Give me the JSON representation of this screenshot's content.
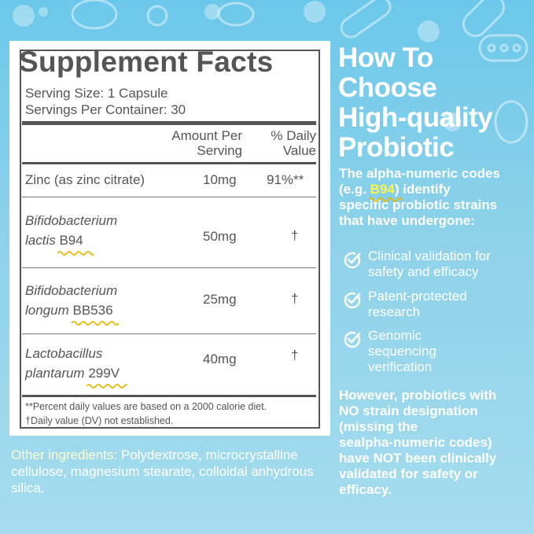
{
  "colors": {
    "background": "#8ed2ea",
    "panel": "#ffffff",
    "panel_text": "#555555",
    "highlight": "#fff44a",
    "squiggle": "#e8b800"
  },
  "facts": {
    "title": "Supplement Facts",
    "serving_size": "Serving Size: 1 Capsule",
    "servings_per_container": "Servings Per Container: 30",
    "col_amount_1": "Amount Per",
    "col_amount_2": "Serving",
    "col_dv_1": "% Daily",
    "col_dv_2": "Value",
    "rows": [
      {
        "name": "Zinc (as zinc citrate)",
        "amount": "10mg",
        "dv": "91%**"
      },
      {
        "name_1": "Bifidobacterium",
        "name_2": "lactis",
        "code": "B94",
        "amount": "50mg",
        "dv": "†"
      },
      {
        "name_1": "Bifidobacterium",
        "name_2": "longum",
        "code": "BB536",
        "amount": "25mg",
        "dv": "†"
      },
      {
        "name_1": "Lactobacillus",
        "name_2": "plantarum",
        "code": "299V",
        "amount": "40mg",
        "dv": "†"
      }
    ],
    "footnote_1": "**Percent daily values are based on a 2000 calorie diet.",
    "footnote_2": "†Daily value (DV) not established."
  },
  "other": {
    "label": "Other ingredients:",
    "text": " Polydextrose, microcrystalline cellulose, magnesium stearate, colloidal anhydrous silica."
  },
  "right": {
    "headline_1": "How To",
    "headline_2": "Choose",
    "headline_3": "High-quality",
    "headline_4": "Probiotic",
    "intro_1": "The alpha-numeric codes",
    "intro_2a": "(e.g. ",
    "intro_code": "B94",
    "intro_2b": ") identify",
    "intro_3": "specific probiotic strains",
    "intro_4": "that have undergone:",
    "checks": [
      {
        "line_1": "Clinical validation for",
        "line_2": "safety and efficacy",
        "line_3": ""
      },
      {
        "line_1": "Patent-protected",
        "line_2": "research",
        "line_3": ""
      },
      {
        "line_1": "Genomic",
        "line_2": "sequencing",
        "line_3": "verification"
      }
    ],
    "warning": [
      "However, probiotics with",
      "NO strain designation",
      "(missing the",
      "sealpha-numeric codes)",
      "have NOT been clinically",
      "validated for safety or",
      "efficacy."
    ]
  }
}
